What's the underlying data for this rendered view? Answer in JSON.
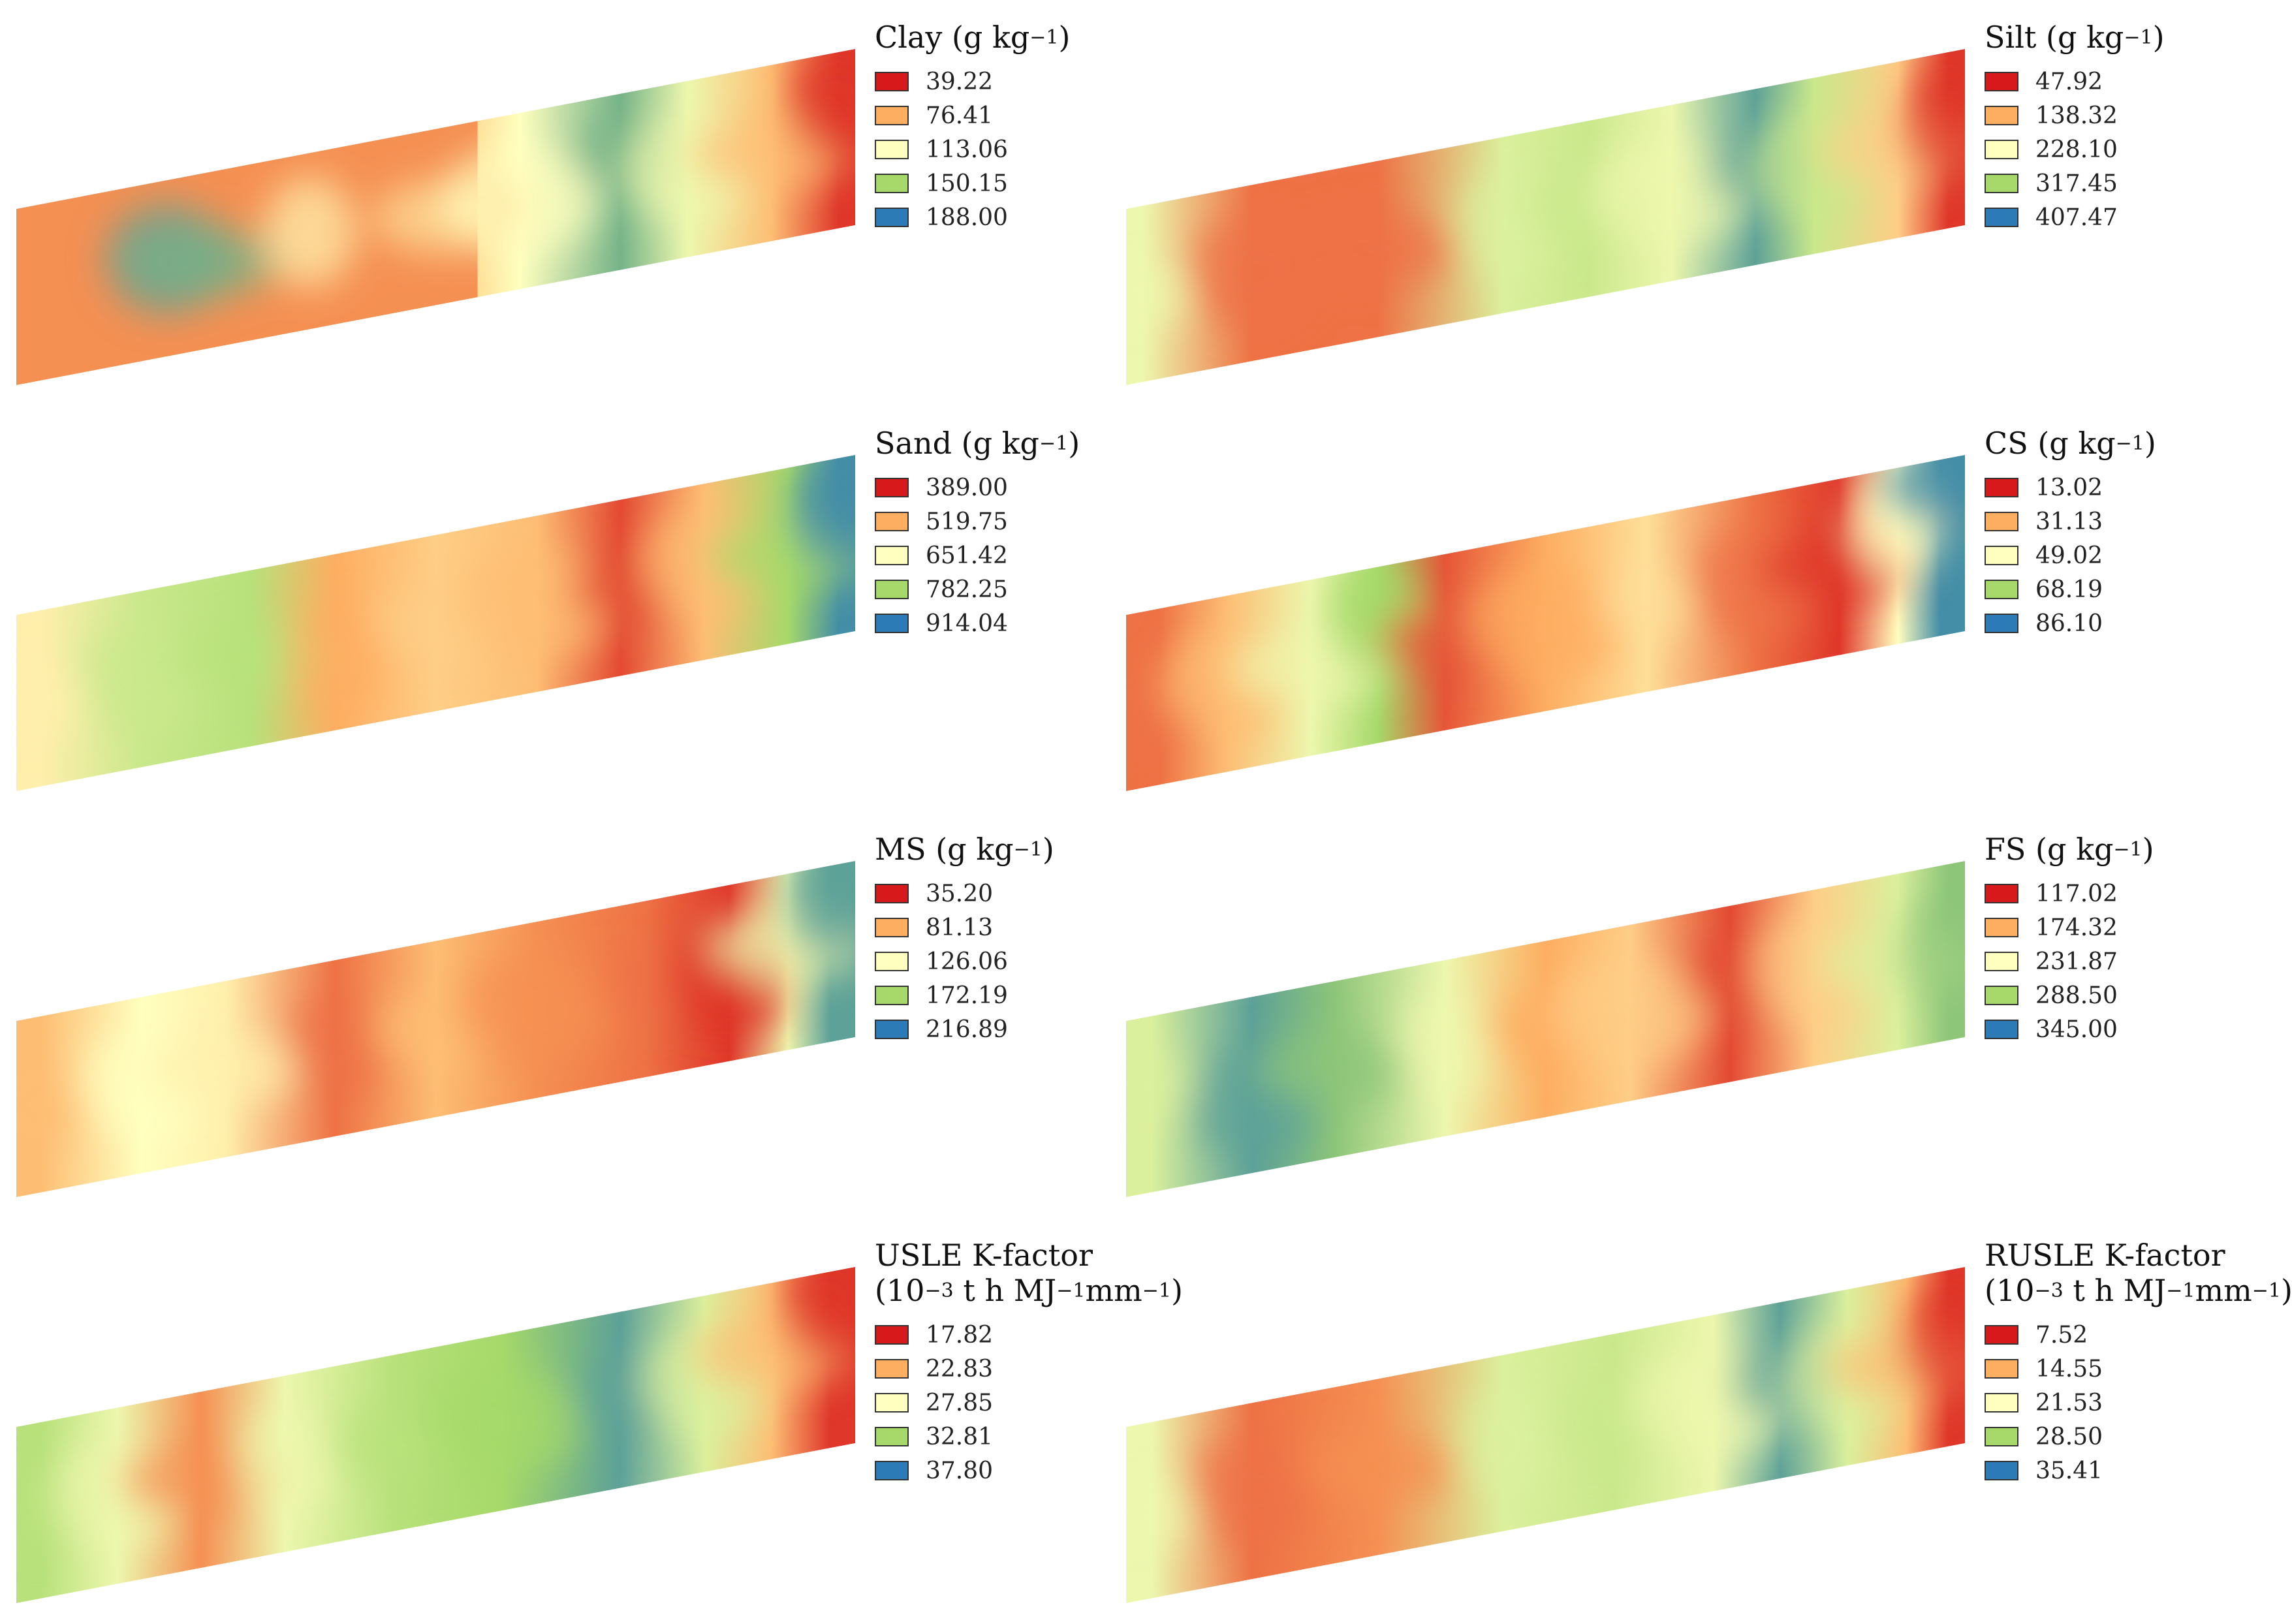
{
  "panels": [
    {
      "name": "Clay (g kg",
      "suffix": ")",
      "unit_exp": "−1",
      "values": [
        "39.22",
        "76.41",
        "113.06",
        "150.15",
        "188.00"
      ],
      "pattern": [
        [
          0.55,
          0.5,
          0.2
        ],
        [
          0.18,
          0.45,
          0.9
        ],
        [
          0.22,
          0.5,
          0.85
        ],
        [
          0.35,
          0.45,
          0.45
        ],
        [
          0.5,
          0.5,
          0.4
        ],
        [
          0.6,
          0.5,
          0.5
        ],
        [
          0.72,
          0.35,
          0.85
        ],
        [
          0.8,
          0.5,
          0.55
        ],
        [
          0.9,
          0.5,
          0.3
        ],
        [
          0.98,
          0.3,
          0.05
        ]
      ]
    },
    {
      "name": "Silt (g kg",
      "suffix": ")",
      "unit_exp": "−1",
      "values": [
        "47.92",
        "138.32",
        "228.10",
        "317.45",
        "407.47"
      ],
      "pattern": [
        [
          0.02,
          0.5,
          0.55
        ],
        [
          0.15,
          0.5,
          0.15
        ],
        [
          0.3,
          0.5,
          0.15
        ],
        [
          0.45,
          0.5,
          0.6
        ],
        [
          0.55,
          0.5,
          0.65
        ],
        [
          0.65,
          0.5,
          0.55
        ],
        [
          0.75,
          0.45,
          0.9
        ],
        [
          0.82,
          0.5,
          0.65
        ],
        [
          0.92,
          0.5,
          0.35
        ],
        [
          0.98,
          0.4,
          0.05
        ]
      ]
    },
    {
      "name": "Sand (g kg",
      "suffix": ")",
      "unit_exp": "−1",
      "values": [
        "389.00",
        "519.75",
        "651.42",
        "782.25",
        "914.04"
      ],
      "pattern": [
        [
          0.03,
          0.5,
          0.45
        ],
        [
          0.15,
          0.5,
          0.65
        ],
        [
          0.28,
          0.5,
          0.7
        ],
        [
          0.38,
          0.6,
          0.25
        ],
        [
          0.5,
          0.5,
          0.35
        ],
        [
          0.62,
          0.5,
          0.3
        ],
        [
          0.72,
          0.5,
          0.08
        ],
        [
          0.82,
          0.45,
          0.3
        ],
        [
          0.92,
          0.5,
          0.75
        ],
        [
          0.98,
          0.3,
          0.95
        ]
      ]
    },
    {
      "name": "CS (g kg",
      "suffix": ")",
      "unit_exp": "−1",
      "values": [
        "13.02",
        "31.13",
        "49.02",
        "68.19",
        "86.10"
      ],
      "pattern": [
        [
          0.04,
          0.6,
          0.15
        ],
        [
          0.12,
          0.5,
          0.3
        ],
        [
          0.22,
          0.5,
          0.55
        ],
        [
          0.3,
          0.3,
          0.75
        ],
        [
          0.38,
          0.5,
          0.1
        ],
        [
          0.5,
          0.5,
          0.25
        ],
        [
          0.62,
          0.5,
          0.4
        ],
        [
          0.75,
          0.5,
          0.15
        ],
        [
          0.85,
          0.5,
          0.05
        ],
        [
          0.92,
          0.3,
          0.5
        ],
        [
          0.97,
          0.15,
          0.95
        ]
      ]
    },
    {
      "name": "MS (g kg",
      "suffix": ")",
      "unit_exp": "−1",
      "values": [
        "35.20",
        "81.13",
        "126.06",
        "172.19",
        "216.89"
      ],
      "pattern": [
        [
          0.03,
          0.5,
          0.3
        ],
        [
          0.15,
          0.5,
          0.5
        ],
        [
          0.25,
          0.5,
          0.45
        ],
        [
          0.38,
          0.5,
          0.15
        ],
        [
          0.5,
          0.5,
          0.3
        ],
        [
          0.62,
          0.5,
          0.2
        ],
        [
          0.75,
          0.5,
          0.15
        ],
        [
          0.85,
          0.55,
          0.05
        ],
        [
          0.92,
          0.4,
          0.55
        ],
        [
          0.97,
          0.2,
          0.9
        ]
      ]
    },
    {
      "name": "FS (g kg",
      "suffix": ")",
      "unit_exp": "−1",
      "values": [
        "117.02",
        "174.32",
        "231.87",
        "288.50",
        "345.00"
      ],
      "pattern": [
        [
          0.03,
          0.4,
          0.6
        ],
        [
          0.15,
          0.6,
          0.9
        ],
        [
          0.25,
          0.5,
          0.8
        ],
        [
          0.38,
          0.5,
          0.55
        ],
        [
          0.5,
          0.5,
          0.25
        ],
        [
          0.6,
          0.5,
          0.35
        ],
        [
          0.72,
          0.4,
          0.08
        ],
        [
          0.82,
          0.45,
          0.35
        ],
        [
          0.92,
          0.5,
          0.6
        ],
        [
          0.98,
          0.5,
          0.8
        ]
      ]
    },
    {
      "name": "USLE K-factor",
      "unit_line": "(10",
      "unit_exp": "−3",
      "unit_mid": " t h MJ",
      "unit_exp2": "−1",
      "unit_mid2": "mm",
      "unit_exp3": "−1",
      "unit_end": ")",
      "values": [
        "17.82",
        "22.83",
        "27.85",
        "32.81",
        "37.80"
      ],
      "pattern": [
        [
          0.03,
          0.5,
          0.7
        ],
        [
          0.12,
          0.5,
          0.55
        ],
        [
          0.22,
          0.5,
          0.2
        ],
        [
          0.32,
          0.5,
          0.55
        ],
        [
          0.45,
          0.5,
          0.7
        ],
        [
          0.58,
          0.5,
          0.75
        ],
        [
          0.72,
          0.5,
          0.9
        ],
        [
          0.82,
          0.5,
          0.6
        ],
        [
          0.9,
          0.4,
          0.3
        ],
        [
          0.97,
          0.2,
          0.05
        ]
      ]
    },
    {
      "name": "RUSLE K-factor",
      "unit_line": "(10",
      "unit_exp": "−3",
      "unit_mid": " t h MJ",
      "unit_exp2": "−1",
      "unit_mid2": "mm",
      "unit_exp3": "−1",
      "unit_end": ")",
      "values": [
        "7.52",
        "14.55",
        "21.53",
        "28.50",
        "35.41"
      ],
      "pattern": [
        [
          0.03,
          0.5,
          0.55
        ],
        [
          0.15,
          0.5,
          0.15
        ],
        [
          0.3,
          0.5,
          0.2
        ],
        [
          0.45,
          0.5,
          0.6
        ],
        [
          0.58,
          0.5,
          0.65
        ],
        [
          0.7,
          0.5,
          0.55
        ],
        [
          0.78,
          0.45,
          0.9
        ],
        [
          0.86,
          0.5,
          0.6
        ],
        [
          0.93,
          0.5,
          0.3
        ],
        [
          0.98,
          0.4,
          0.05
        ]
      ]
    }
  ],
  "colors": {
    "class_1": "#d7191c",
    "class_2": "#fdae61",
    "class_3": "#ffffbf",
    "class_4": "#a6d96a",
    "class_5": "#2c7bb6"
  }
}
